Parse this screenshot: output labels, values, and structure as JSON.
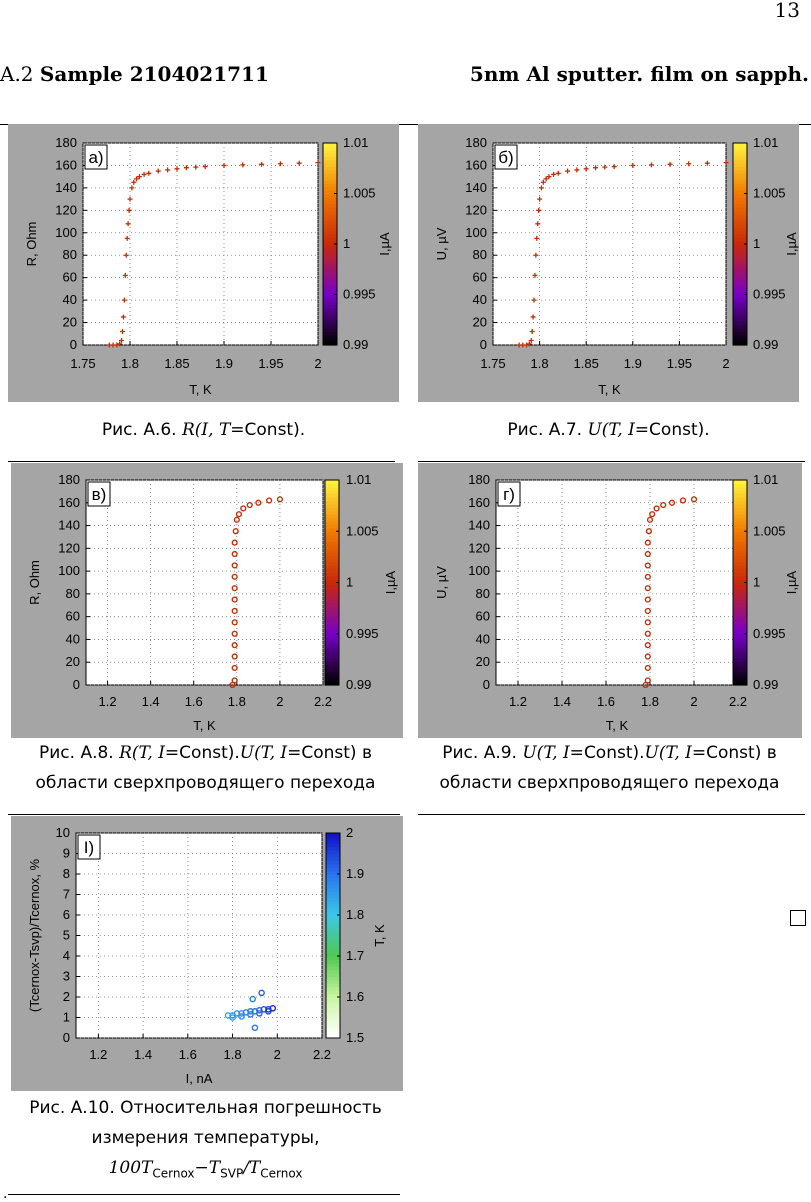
{
  "page": {
    "number": "13",
    "section_prefix": "A.2",
    "section_title": "Sample 2104021711",
    "section_right": "5nm Al sputter. film on sapph.",
    "stray_mark": "."
  },
  "figures": {
    "a6": {
      "panel_label": "а)",
      "caption_prefix": "Рис. А.6.",
      "caption_math": "R(I, T=",
      "caption_const": "Const)."
    },
    "a7": {
      "panel_label": "б)",
      "caption_prefix": "Рис. А.7.",
      "caption_math": "U(T, I=",
      "caption_const": "Const)."
    },
    "a8": {
      "panel_label": "в)",
      "caption_line1_prefix": "Рис. А.8.",
      "caption_line1_math1": "R(T, I=",
      "caption_line1_const1": "Const).",
      "caption_line1_math2": "U(T, I=",
      "caption_line1_const2": "Const) в",
      "caption_line2": "области сверхпроводящего перехода"
    },
    "a9": {
      "panel_label": "г)",
      "caption_line1_prefix": "Рис. А.9.",
      "caption_line1_math1": "U(T, I=",
      "caption_line1_const1": "Const).",
      "caption_line1_math2": "U(T, I=",
      "caption_line1_const2": "Const) в",
      "caption_line2": "области сверхпроводящего перехода"
    },
    "a10": {
      "panel_label": "I)",
      "caption_line1": "Рис. А.10. Относительная погрешность",
      "caption_line2": "измерения температуры,",
      "caption_line3_a": "100T",
      "caption_line3_b": "Cernox",
      "caption_line3_c": "−T",
      "caption_line3_d": "SVP",
      "caption_line3_e": "/T",
      "caption_line3_f": "Cernox"
    }
  },
  "chart_data": [
    {
      "id": "a6",
      "type": "scatter",
      "xlabel": "T, K",
      "ylabel": "R, Ohm",
      "xlim": [
        1.75,
        2.0
      ],
      "ylim": [
        0,
        180
      ],
      "xticks": [
        "1.75",
        "1.8",
        "1.85",
        "1.9",
        "1.95",
        "2"
      ],
      "yticks": [
        "0",
        "20",
        "40",
        "60",
        "80",
        "100",
        "120",
        "140",
        "160",
        "180"
      ],
      "colorbar": {
        "label": "I,µA",
        "ticks": [
          "0.99",
          "0.995",
          "1",
          "1.005",
          "1.01"
        ],
        "range": [
          0.99,
          1.01
        ]
      },
      "marker": "plus",
      "color": "#c0300a",
      "grid": true,
      "x": [
        1.778,
        1.782,
        1.786,
        1.789,
        1.791,
        1.792,
        1.793,
        1.794,
        1.795,
        1.796,
        1.797,
        1.798,
        1.799,
        1.8,
        1.802,
        1.804,
        1.807,
        1.81,
        1.815,
        1.82,
        1.83,
        1.84,
        1.85,
        1.86,
        1.87,
        1.88,
        1.9,
        1.92,
        1.94,
        1.96,
        1.98,
        2.0
      ],
      "y": [
        0,
        0,
        0,
        1,
        4,
        12,
        25,
        40,
        62,
        80,
        95,
        108,
        120,
        130,
        140,
        145,
        148,
        150,
        152,
        153,
        155,
        156,
        157,
        158,
        158.5,
        159,
        160,
        160.5,
        161,
        161.5,
        162,
        162.5
      ]
    },
    {
      "id": "a7",
      "type": "scatter",
      "xlabel": "T, K",
      "ylabel": "U, µV",
      "xlim": [
        1.75,
        2.0
      ],
      "ylim": [
        0,
        180
      ],
      "xticks": [
        "1.75",
        "1.8",
        "1.85",
        "1.9",
        "1.95",
        "2"
      ],
      "yticks": [
        "0",
        "20",
        "40",
        "60",
        "80",
        "100",
        "120",
        "140",
        "160",
        "180"
      ],
      "colorbar": {
        "label": "I,µA",
        "ticks": [
          "0.99",
          "0.995",
          "1",
          "1.005",
          "1.01"
        ],
        "range": [
          0.99,
          1.01
        ]
      },
      "marker": "plus",
      "color": "#c0300a",
      "grid": true,
      "x": [
        1.778,
        1.782,
        1.786,
        1.789,
        1.791,
        1.792,
        1.793,
        1.794,
        1.795,
        1.796,
        1.797,
        1.798,
        1.799,
        1.8,
        1.802,
        1.804,
        1.807,
        1.81,
        1.815,
        1.82,
        1.83,
        1.84,
        1.85,
        1.86,
        1.87,
        1.88,
        1.9,
        1.92,
        1.94,
        1.96,
        1.98,
        2.0
      ],
      "y": [
        0,
        0,
        0,
        1,
        4,
        12,
        25,
        40,
        62,
        80,
        95,
        108,
        120,
        130,
        140,
        145,
        148,
        150,
        152,
        153,
        155,
        156,
        157,
        158,
        158.5,
        159,
        160,
        160.5,
        161,
        161.5,
        162,
        162.5
      ]
    },
    {
      "id": "a8",
      "type": "scatter",
      "xlabel": "T, K",
      "ylabel": "R, Ohm",
      "xlim": [
        1.1,
        2.2
      ],
      "ylim": [
        0,
        180
      ],
      "xticks": [
        "1.2",
        "1.4",
        "1.6",
        "1.8",
        "2",
        "2.2"
      ],
      "xtick_values": [
        1.2,
        1.4,
        1.6,
        1.8,
        2.0,
        2.2
      ],
      "yticks": [
        "0",
        "20",
        "40",
        "60",
        "80",
        "100",
        "120",
        "140",
        "160",
        "180"
      ],
      "colorbar": {
        "label": "I,µA",
        "ticks": [
          "0.99",
          "0.995",
          "1",
          "1.005",
          "1.01"
        ],
        "range": [
          0.99,
          1.01
        ]
      },
      "marker": "circle",
      "color": "#c0300a",
      "grid": true,
      "x": [
        1.78,
        1.79,
        1.79,
        1.79,
        1.79,
        1.79,
        1.79,
        1.79,
        1.79,
        1.79,
        1.79,
        1.79,
        1.79,
        1.79,
        1.795,
        1.8,
        1.81,
        1.83,
        1.86,
        1.9,
        1.95,
        2.0
      ],
      "y": [
        0,
        4,
        15,
        25,
        35,
        45,
        55,
        65,
        75,
        85,
        95,
        105,
        115,
        125,
        135,
        145,
        150,
        155,
        158,
        160,
        162,
        163
      ]
    },
    {
      "id": "a9",
      "type": "scatter",
      "xlabel": "T, K",
      "ylabel": "U, µV",
      "xlim": [
        1.1,
        2.2
      ],
      "ylim": [
        0,
        180
      ],
      "xticks": [
        "1.2",
        "1.4",
        "1.6",
        "1.8",
        "2",
        "2.2"
      ],
      "xtick_values": [
        1.2,
        1.4,
        1.6,
        1.8,
        2.0,
        2.2
      ],
      "yticks": [
        "0",
        "20",
        "40",
        "60",
        "80",
        "100",
        "120",
        "140",
        "160",
        "180"
      ],
      "colorbar": {
        "label": "I,µA",
        "ticks": [
          "0.99",
          "0.995",
          "1",
          "1.005",
          "1.01"
        ],
        "range": [
          0.99,
          1.01
        ]
      },
      "marker": "circle",
      "color": "#c0300a",
      "grid": true,
      "x": [
        1.78,
        1.79,
        1.79,
        1.79,
        1.79,
        1.79,
        1.79,
        1.79,
        1.79,
        1.79,
        1.79,
        1.79,
        1.79,
        1.79,
        1.795,
        1.8,
        1.81,
        1.83,
        1.86,
        1.9,
        1.95,
        2.0
      ],
      "y": [
        0,
        4,
        15,
        25,
        35,
        45,
        55,
        65,
        75,
        85,
        95,
        105,
        115,
        125,
        135,
        145,
        150,
        155,
        158,
        160,
        162,
        163
      ]
    },
    {
      "id": "a10",
      "type": "scatter",
      "xlabel": "I, nA",
      "ylabel": "(Tcernox-Tsvp)/Tcernox, %",
      "xlim": [
        1.1,
        2.2
      ],
      "ylim": [
        0,
        10
      ],
      "xticks": [
        "1.2",
        "1.4",
        "1.6",
        "1.8",
        "2",
        "2.2"
      ],
      "xtick_values": [
        1.2,
        1.4,
        1.6,
        1.8,
        2.0,
        2.2
      ],
      "yticks": [
        "0",
        "1",
        "2",
        "3",
        "4",
        "5",
        "6",
        "7",
        "8",
        "9",
        "10"
      ],
      "colorbar": {
        "label": "T, K",
        "ticks": [
          "1.5",
          "1.6",
          "1.7",
          "1.8",
          "1.9",
          "2"
        ],
        "range": [
          1.5,
          2.0
        ]
      },
      "marker": "circle",
      "grid": true,
      "x": [
        1.78,
        1.8,
        1.82,
        1.84,
        1.86,
        1.88,
        1.9,
        1.92,
        1.94,
        1.96,
        1.98,
        1.8,
        1.84,
        1.88,
        1.92,
        1.96,
        1.9,
        1.93,
        1.89
      ],
      "y": [
        1.1,
        1.1,
        1.2,
        1.2,
        1.25,
        1.3,
        1.3,
        1.35,
        1.4,
        1.4,
        1.45,
        1.0,
        1.05,
        1.15,
        1.2,
        1.3,
        0.5,
        2.2,
        1.9
      ],
      "c": [
        1.85,
        1.86,
        1.87,
        1.88,
        1.89,
        1.9,
        1.91,
        1.92,
        1.94,
        1.96,
        1.98,
        1.85,
        1.87,
        1.9,
        1.92,
        1.96,
        1.9,
        1.93,
        1.89
      ]
    }
  ]
}
